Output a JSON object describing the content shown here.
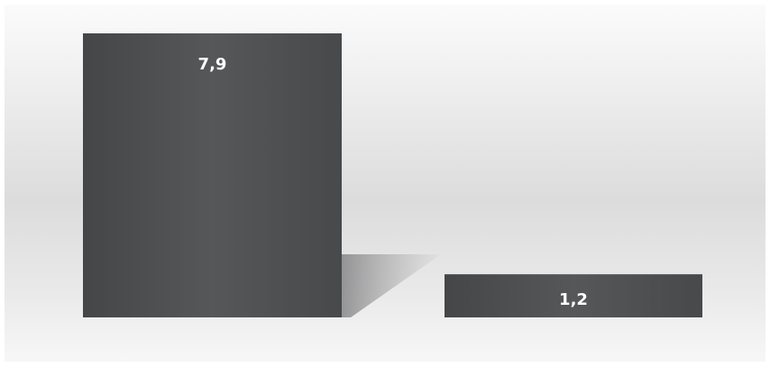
{
  "chart_data": {
    "type": "bar",
    "categories": [
      "",
      ""
    ],
    "values": [
      7.9,
      1.2
    ],
    "data_labels": [
      "7,9",
      "1,2"
    ],
    "ylim": [
      0,
      7.9
    ],
    "grid": false,
    "legend": "none",
    "bar_color": "#4b4d4f",
    "label_color": "#ffffff"
  }
}
